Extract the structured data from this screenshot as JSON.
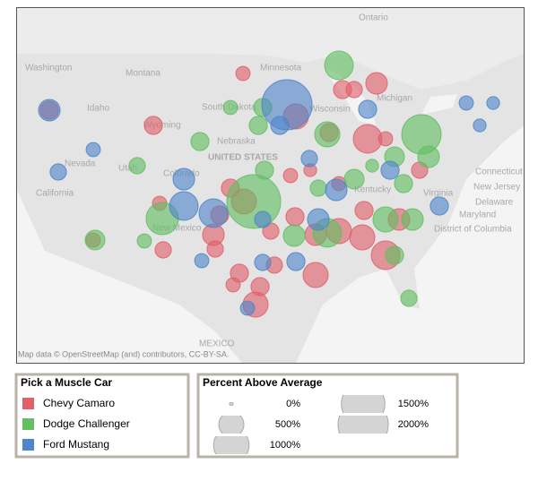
{
  "chart_data": {
    "type": "bubble",
    "series": [
      {
        "name": "Chevy Camaro",
        "color": "#e0606a",
        "lon": [
          -120.5,
          -108.9,
          -98.9,
          -93,
          -87.8,
          -86.5,
          -84,
          -89.3,
          -85,
          -83,
          -79.2,
          -81.5,
          -85.4,
          -85.6,
          -83,
          -88.2,
          -90.8,
          -93.1,
          -95.8,
          -98.8,
          -100.3,
          -101.5,
          -102.2,
          -102,
          -108.2,
          -115.6,
          -107.8,
          -99.3,
          -100,
          -95.4,
          -90.8,
          -97,
          -97.5,
          -93.6,
          -88.2,
          -91.4
        ],
        "lat": [
          43.7,
          42,
          47.8,
          43,
          46,
          46,
          46.7,
          41.2,
          40.5,
          40.5,
          37,
          31.5,
          32.5,
          29.5,
          27.5,
          30.2,
          29.8,
          31.8,
          30.2,
          33.5,
          35,
          32,
          29.8,
          28.2,
          33.3,
          29.2,
          28.1,
          25.5,
          24.2,
          26.4,
          25.3,
          24,
          22,
          36.4,
          35.5,
          37
        ],
        "values": [
          260,
          260,
          160,
          500,
          260,
          210,
          370,
          260,
          650,
          160,
          210,
          370,
          260,
          500,
          650,
          500,
          370,
          260,
          210,
          500,
          260,
          260,
          370,
          210,
          160,
          160,
          210,
          260,
          160,
          210,
          500,
          260,
          500,
          160,
          160,
          130
        ]
      },
      {
        "name": "Dodge Challenger",
        "color": "#62bf62",
        "lon": [
          -110.7,
          -103.7,
          -100.3,
          -96.7,
          -97.2,
          -88.2,
          -89.5,
          -79,
          -78.2,
          -82,
          -84.5,
          -81,
          -80,
          -83,
          -82,
          -80.4,
          -89.5,
          -93.2,
          -97.7,
          -107.9,
          -109.9,
          -115.4,
          -90.5,
          -86.5,
          -96.5
        ],
        "lat": [
          37.5,
          40.2,
          44,
          44,
          42,
          48.7,
          41,
          41,
          38.5,
          38.5,
          37.5,
          35.5,
          31.5,
          31.5,
          27.5,
          22.7,
          30,
          29.7,
          33.5,
          31.6,
          29.1,
          29.2,
          35,
          36,
          37
        ],
        "values": [
          210,
          260,
          160,
          260,
          260,
          650,
          500,
          1230,
          370,
          310,
          130,
          260,
          370,
          500,
          260,
          210,
          650,
          370,
          2300,
          830,
          160,
          310,
          210,
          310,
          260
        ]
      },
      {
        "name": "Ford Mustang",
        "color": "#4f86c9",
        "lon": [
          -120.5,
          -115.6,
          -119.5,
          -94,
          -94.8,
          -85,
          -74,
          -71,
          -72.5,
          -82.5,
          -77,
          -90.5,
          -96.7,
          -102.2,
          -105.5,
          -105.5,
          -103.5,
          -96.7,
          -93,
          -98.4,
          -91.5,
          -88.5
        ],
        "lat": [
          43.7,
          39.3,
          36.8,
          44.3,
          42,
          43.8,
          44.5,
          44.5,
          42,
          37,
          33,
          31.5,
          31.5,
          32.2,
          33,
          36,
          26.9,
          26.7,
          26.8,
          21.6,
          38.3,
          34.8
        ],
        "values": [
          370,
          160,
          210,
          2000,
          260,
          260,
          160,
          130,
          130,
          260,
          260,
          370,
          210,
          650,
          650,
          370,
          160,
          210,
          260,
          160,
          210,
          370
        ]
      }
    ],
    "color_legend_title": "Pick a Muscle Car",
    "size_legend_title": "Percent Above Average",
    "size_ticks": [
      {
        "value": 0,
        "label": "0%"
      },
      {
        "value": 500,
        "label": "500%"
      },
      {
        "value": 1000,
        "label": "1000%"
      },
      {
        "value": 1500,
        "label": "1500%"
      },
      {
        "value": 2000,
        "label": "2000%"
      }
    ]
  },
  "map_labels": [
    "Ontario",
    "Washington",
    "Montana",
    "Idaho",
    "South Dakota",
    "Minnesota",
    "Wisconsin",
    "Michigan",
    "Wyoming",
    "Nebraska",
    "UNITED STATES",
    "Nevada",
    "Utah",
    "Colorado",
    "California",
    "New Mexico",
    "Kentucky",
    "Virginia",
    "Connecticut",
    "New Jersey",
    "Delaware",
    "Maryland",
    "District of Columbia",
    "MEXICO"
  ],
  "attribution": "Map data © OpenStreetMap (and) contributors, CC-BY-SA."
}
